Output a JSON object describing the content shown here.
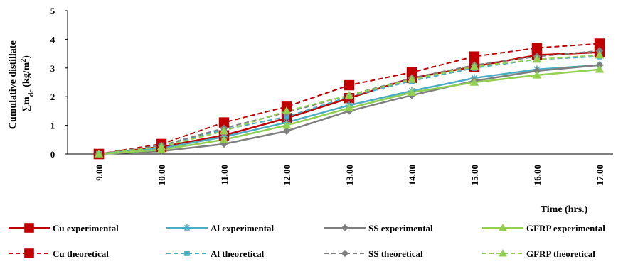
{
  "chart_data": {
    "type": "line",
    "xlabel": "Time (hrs.)",
    "ylabel_line1": "Cumulative distillate",
    "ylabel_sum": "∑m",
    "ylabel_sub": "dc",
    "ylabel_units_open": " (kg/m",
    "ylabel_units_sup": "2",
    "ylabel_units_close": ")",
    "categories": [
      "9.00",
      "10.00",
      "11.00",
      "12.00",
      "13.00",
      "14.00",
      "15.00",
      "16.00",
      "17.00"
    ],
    "ylim": [
      0,
      5
    ],
    "yticks": [
      "0",
      "1",
      "2",
      "3",
      "4",
      "5"
    ],
    "grid": false,
    "legend_position": "bottom",
    "series": [
      {
        "name": "Cu experimental",
        "color": "#C00000",
        "dash": false,
        "marker": "square",
        "values": [
          0,
          0.25,
          0.65,
          1.25,
          1.95,
          2.65,
          3.05,
          3.45,
          3.55
        ]
      },
      {
        "name": "Al experimental",
        "color": "#4BACC6",
        "dash": false,
        "marker": "asterisk",
        "values": [
          0,
          0.2,
          0.6,
          1.1,
          1.7,
          2.2,
          2.65,
          2.95,
          3.1
        ]
      },
      {
        "name": "SS experimental",
        "color": "#7F7F7F",
        "dash": false,
        "marker": "diamond",
        "values": [
          0,
          0.1,
          0.35,
          0.8,
          1.5,
          2.05,
          2.55,
          2.9,
          3.1
        ]
      },
      {
        "name": "GFRP experimental",
        "color": "#92D050",
        "dash": false,
        "marker": "triangle",
        "values": [
          0,
          0.15,
          0.5,
          1.0,
          1.6,
          2.15,
          2.5,
          2.75,
          2.95
        ]
      },
      {
        "name": "Cu theoretical",
        "color": "#C00000",
        "dash": true,
        "marker": "square",
        "values": [
          0,
          0.35,
          1.1,
          1.65,
          2.4,
          2.85,
          3.4,
          3.7,
          3.85
        ]
      },
      {
        "name": "Al theoretical",
        "color": "#4BACC6",
        "dash": true,
        "marker": "square-small",
        "values": [
          0,
          0.3,
          0.85,
          1.3,
          2.0,
          2.55,
          3.0,
          3.3,
          3.4
        ]
      },
      {
        "name": "SS theoretical",
        "color": "#7F7F7F",
        "dash": true,
        "marker": "diamond",
        "values": [
          0,
          0.3,
          0.9,
          1.45,
          2.05,
          2.65,
          3.1,
          3.4,
          3.6
        ]
      },
      {
        "name": "GFRP theoretical",
        "color": "#92D050",
        "dash": true,
        "marker": "triangle",
        "values": [
          0,
          0.25,
          0.8,
          1.5,
          2.05,
          2.6,
          3.05,
          3.3,
          3.45
        ]
      }
    ]
  }
}
